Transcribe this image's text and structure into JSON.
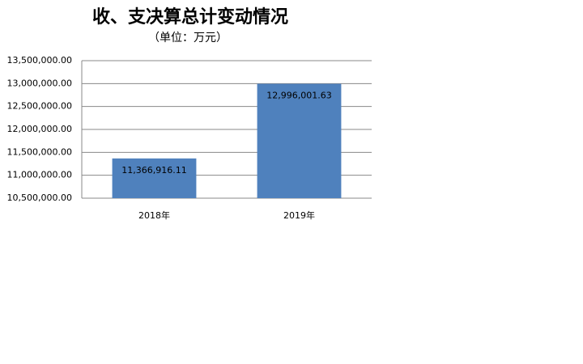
{
  "chart_data": {
    "type": "bar",
    "title": "收、支决算总计变动情况",
    "subtitle": "（单位：万元）",
    "categories": [
      "2018年",
      "2019年"
    ],
    "values": [
      11366916.11,
      12996001.63
    ],
    "value_labels": [
      "11,366,916.11",
      "12,996,001.63"
    ],
    "color": "#4f81bd",
    "ylim": [
      10500000,
      13500000
    ],
    "yticks": [
      {
        "value": 10500000,
        "label": "10,500,000.00"
      },
      {
        "value": 11000000,
        "label": "11,000,000.00"
      },
      {
        "value": 11500000,
        "label": "11,500,000.00"
      },
      {
        "value": 12000000,
        "label": "12,000,000.00"
      },
      {
        "value": 12500000,
        "label": "12,500,000.00"
      },
      {
        "value": 13000000,
        "label": "13,000,000.00"
      },
      {
        "value": 13500000,
        "label": "13,500,000.00"
      }
    ],
    "grid": true
  }
}
